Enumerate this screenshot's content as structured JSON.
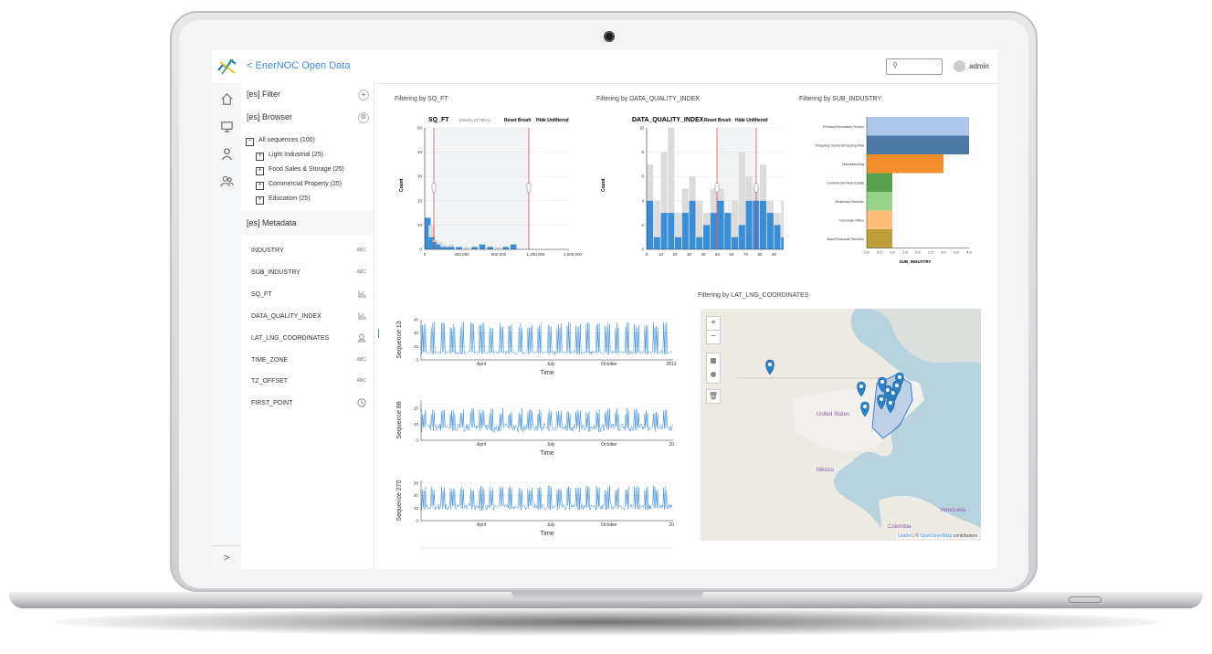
{
  "app": {
    "title": "EnerNOC Open Data",
    "back_glyph": "<",
    "logo_icon": "enernoc-logo-icon"
  },
  "header": {
    "search_icon": "search-icon",
    "search_placeholder": "",
    "user": "admin"
  },
  "leftnav": {
    "items": [
      "home-icon",
      "monitor-icon",
      "user-icon",
      "users-icon"
    ],
    "expand_glyph": ">"
  },
  "sidebar": {
    "filter": {
      "label": "[es] Filter",
      "add_glyph": "+"
    },
    "browser": {
      "label": "[es] Browser"
    },
    "tree": {
      "root": {
        "label": "All sequences (100)",
        "glyph": "−"
      },
      "children": [
        {
          "label": "Light Industrial (25)",
          "glyph": "+"
        },
        {
          "label": "Food Sales & Storage (25)",
          "glyph": "+"
        },
        {
          "label": "Commercial Property (25)",
          "glyph": "+"
        },
        {
          "label": "Education (25)",
          "glyph": "+"
        }
      ]
    },
    "metadata": {
      "label": "[es] Metadata"
    },
    "fields": [
      {
        "name": "INDUSTRY",
        "type": "ABC"
      },
      {
        "name": "SUB_INDUSTRY",
        "type": "ABC"
      },
      {
        "name": "SQ_FT",
        "type": "bar-chart-icon"
      },
      {
        "name": "DATA_QUALITY_INDEX",
        "type": "bar-chart-icon"
      },
      {
        "name": "LAT_LNG_COORDINATES",
        "type": "map-icon"
      },
      {
        "name": "TIME_ZONE",
        "type": "ABC"
      },
      {
        "name": "TZ_OFFSET",
        "type": "ABC"
      },
      {
        "name": "FIRST_POINT",
        "type": "clock-icon"
      }
    ]
  },
  "filters": {
    "sqft": {
      "caption": "Filtering by SQ_FT",
      "title": "SQ_FT",
      "range": "[92834,1373941]",
      "reset": "Reset Brush",
      "hide": "Hide Unfiltered",
      "ylabel": "Count"
    },
    "dqi": {
      "caption": "Filtering by DATA_QUALITY_INDEX",
      "title": "DATA_QUALITY_INDEX",
      "reset": "Reset Brush",
      "hide": "Hide Unfiltered",
      "ylabel": "Count"
    },
    "sub": {
      "caption": "Filtering by SUB_INDUSTRY",
      "xlabel": "SUB_INDUSTRY"
    },
    "map": {
      "caption": "Filtering by LAT_LNG_COORDINATES"
    }
  },
  "chart_data": [
    {
      "type": "bar",
      "title": "SQ_FT",
      "x": [
        0,
        50000,
        100000,
        150000,
        200000,
        250000,
        300000,
        400000,
        500000,
        600000,
        700000,
        800000,
        900000,
        1000000,
        1100000,
        1200000,
        1300000,
        1400000,
        1500000,
        1600000,
        1700000
      ],
      "series": [
        {
          "values": [
            13,
            5,
            3,
            2,
            1,
            1,
            1,
            1,
            0,
            1,
            2,
            1,
            0,
            1,
            2,
            0,
            0,
            0,
            0,
            0,
            0
          ]
        }
      ],
      "ylabel": "Count",
      "ylim": [
        0,
        50
      ],
      "yticks": [
        0,
        10,
        20,
        30,
        40,
        50
      ],
      "xticks": [
        "0",
        "400,000",
        "800,000",
        "1,200,000",
        "1,600,000"
      ]
    },
    {
      "type": "bar",
      "title": "DATA_QUALITY_INDEX",
      "x": [
        0,
        5,
        10,
        15,
        20,
        25,
        30,
        35,
        40,
        45,
        50,
        55,
        60,
        65,
        70,
        75,
        80,
        85,
        90,
        95
      ],
      "series": [
        {
          "values": [
            4,
            1,
            3,
            3,
            1,
            3,
            4,
            1,
            2,
            3,
            4,
            3,
            1,
            2,
            4,
            4,
            4,
            3,
            2,
            1
          ]
        }
      ],
      "ylabel": "Count",
      "ylim": [
        0,
        10
      ],
      "yticks": [
        0,
        2,
        4,
        6,
        8,
        10
      ],
      "xticks": [
        "0",
        "10",
        "20",
        "30",
        "40",
        "50",
        "60",
        "70",
        "80",
        "90",
        "100"
      ]
    },
    {
      "type": "bar",
      "orientation": "horizontal",
      "xlabel": "SUB_INDUSTRY",
      "categories": [
        "Primary/Secondary School",
        "Shopping Center/Shopping Mall",
        "Manufacturing",
        "Commercial Real Estate",
        "Business Services",
        "Corporate Office",
        "Bank/Financial Services"
      ],
      "values": [
        4,
        4,
        3,
        1,
        1,
        1,
        1
      ],
      "colors": [
        "#aec7e8",
        "#4e79a7",
        "#f28e2b",
        "#59a14f",
        "#98d48a",
        "#ffbe7d",
        "#bd9e39"
      ],
      "xticks": [
        "0.0",
        "0.5",
        "1.0",
        "1.5",
        "2.0",
        "2.5",
        "3.0",
        "3.5",
        "4.0"
      ]
    },
    {
      "type": "line",
      "title": "Sequence 13",
      "ylabel": "Sequence 13",
      "xlabel": "Time",
      "yticks": [
        "0",
        "20",
        "40",
        "60"
      ],
      "xticks": [
        "April",
        "July",
        "October",
        "2013"
      ]
    },
    {
      "type": "line",
      "title": "Sequence 88",
      "ylabel": "Sequence 88",
      "xlabel": "Time",
      "yticks": [
        "0",
        "10",
        "20"
      ],
      "xticks": [
        "April",
        "July",
        "October",
        "20"
      ]
    },
    {
      "type": "line",
      "title": "Sequence 270",
      "ylabel": "Sequence 270",
      "xlabel": "Time",
      "yticks": [
        "0",
        "10",
        "20",
        "30"
      ],
      "xticks": [
        "April",
        "July",
        "October",
        "20"
      ]
    }
  ],
  "map": {
    "zoom_in": "+",
    "zoom_out": "−",
    "labels": {
      "us": "United States",
      "mx": "México",
      "ve": "Venezuela",
      "co": "Colombia"
    },
    "attribution": {
      "leaflet": "Leaflet",
      "sep": " | © ",
      "osm": "OpenStreetMap",
      "rest": " contributors"
    }
  }
}
